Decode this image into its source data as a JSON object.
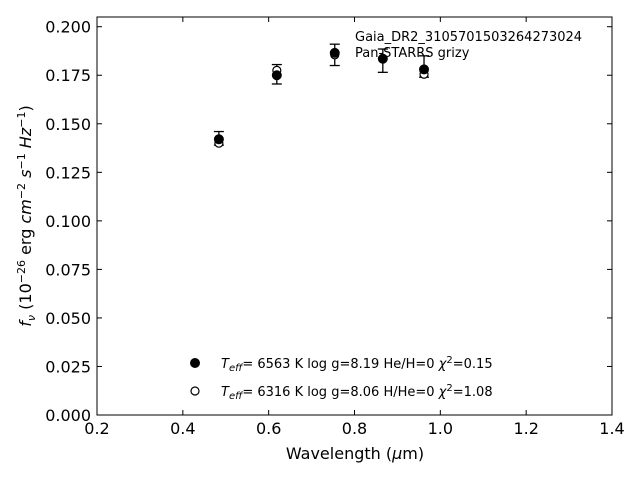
{
  "chart_data": {
    "type": "scatter",
    "title": "",
    "xlabel": "Wavelength (μm)",
    "ylabel": "f_ν (10^-26 erg cm^-2 s^-1 Hz^-1)",
    "xlim": [
      0.2,
      1.4
    ],
    "ylim": [
      0.0,
      0.205
    ],
    "x_ticks": [
      "0.2",
      "0.4",
      "0.6",
      "0.8",
      "1.0",
      "1.2",
      "1.4"
    ],
    "y_ticks": [
      "0.000",
      "0.025",
      "0.050",
      "0.075",
      "0.100",
      "0.125",
      "0.150",
      "0.175",
      "0.200"
    ],
    "grid": false,
    "annotations": [
      "Gaia_DR2_3105701503264273024",
      "Pan-STARRS grizy"
    ],
    "observed": {
      "x": [
        0.484,
        0.619,
        0.754,
        0.866,
        0.962
      ],
      "y": [
        0.1425,
        0.1755,
        0.1855,
        0.1825,
        0.1795
      ],
      "err": [
        0.0035,
        0.005,
        0.0055,
        0.006,
        0.0055
      ]
    },
    "series": [
      {
        "marker": "filled",
        "legend": {
          "teff": "6563",
          "logg": "8.19",
          "comp": "He/H=0",
          "chi2": "0.15"
        },
        "x": [
          0.484,
          0.619,
          0.754,
          0.866,
          0.962
        ],
        "y": [
          0.142,
          0.175,
          0.1865,
          0.1835,
          0.178
        ]
      },
      {
        "marker": "open",
        "legend": {
          "teff": "6316",
          "logg": "8.06",
          "comp": "H/He=0",
          "chi2": "1.08"
        },
        "x": [
          0.484,
          0.619,
          0.754,
          0.866,
          0.962
        ],
        "y": [
          0.14,
          0.1775,
          0.1855,
          0.1835,
          0.1755
        ]
      }
    ]
  }
}
